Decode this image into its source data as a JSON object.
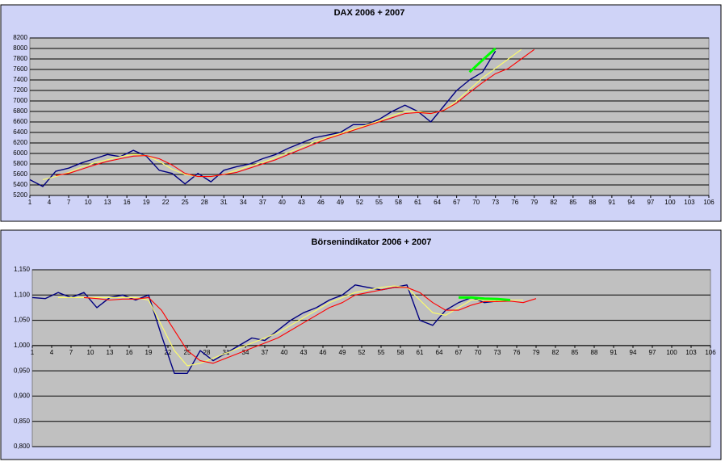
{
  "chart_data": [
    {
      "type": "line",
      "title": "DAX 2006 + 2007",
      "x": [
        1,
        3,
        5,
        7,
        9,
        11,
        13,
        15,
        17,
        19,
        21,
        23,
        25,
        27,
        29,
        31,
        33,
        35,
        37,
        39,
        41,
        43,
        45,
        47,
        49,
        51,
        53,
        55,
        57,
        59,
        61,
        63,
        65,
        67,
        69,
        71,
        73,
        75,
        77,
        79
      ],
      "xlim": [
        1,
        106
      ],
      "xticks": [
        1,
        4,
        7,
        10,
        13,
        16,
        19,
        22,
        25,
        28,
        31,
        34,
        37,
        40,
        43,
        46,
        49,
        52,
        55,
        58,
        61,
        64,
        67,
        70,
        73,
        76,
        79,
        82,
        85,
        88,
        91,
        94,
        97,
        100,
        103,
        106
      ],
      "ylim": [
        5200,
        8200
      ],
      "yticks": [
        5200,
        5400,
        5600,
        5800,
        6000,
        6200,
        6400,
        6600,
        6800,
        7000,
        7200,
        7400,
        7600,
        7800,
        8000,
        8200
      ],
      "grid": true,
      "series": [
        {
          "color": "#000080",
          "values": [
            5500,
            5370,
            5660,
            5720,
            5820,
            5900,
            5980,
            5940,
            6060,
            5950,
            5680,
            5620,
            5420,
            5620,
            5460,
            5680,
            5750,
            5800,
            5900,
            5980,
            6100,
            6200,
            6300,
            6350,
            6400,
            6550,
            6550,
            6650,
            6800,
            6920,
            6800,
            6600,
            6900,
            7200,
            7400,
            7550,
            7950,
            null,
            null,
            null
          ]
        },
        {
          "color": "#ffff66",
          "values": [
            null,
            5500,
            5560,
            5640,
            5740,
            5820,
            5880,
            5940,
            5980,
            5960,
            5850,
            5700,
            5600,
            5560,
            5560,
            5600,
            5680,
            5760,
            5830,
            5920,
            6020,
            6120,
            6220,
            6300,
            6380,
            6460,
            6540,
            6620,
            6720,
            6800,
            6800,
            6760,
            6820,
            7000,
            7220,
            7440,
            7620,
            7800,
            7980,
            null
          ]
        },
        {
          "color": "#ff0000",
          "values": [
            null,
            null,
            5580,
            5620,
            5700,
            5780,
            5850,
            5900,
            5950,
            5960,
            5900,
            5780,
            5620,
            5560,
            5560,
            5600,
            5640,
            5720,
            5800,
            5880,
            5980,
            6080,
            6180,
            6280,
            6360,
            6440,
            6520,
            6600,
            6680,
            6760,
            6780,
            6760,
            6820,
            6960,
            7160,
            7350,
            7520,
            7620,
            7800,
            7980
          ]
        },
        {
          "color": "#00ff00",
          "values": [
            null,
            null,
            null,
            null,
            null,
            null,
            null,
            null,
            null,
            null,
            null,
            null,
            null,
            null,
            null,
            null,
            null,
            null,
            null,
            null,
            null,
            null,
            null,
            null,
            null,
            null,
            null,
            null,
            null,
            null,
            null,
            null,
            null,
            null,
            7550,
            7780,
            8000,
            null,
            null,
            null
          ]
        }
      ]
    },
    {
      "type": "line",
      "title": "Börsenindikator 2006 + 2007",
      "x": [
        1,
        3,
        5,
        7,
        9,
        11,
        13,
        15,
        17,
        19,
        21,
        23,
        25,
        27,
        29,
        31,
        33,
        35,
        37,
        39,
        41,
        43,
        45,
        47,
        49,
        51,
        53,
        55,
        57,
        59,
        61,
        63,
        65,
        67,
        69,
        71,
        73,
        75,
        77,
        79
      ],
      "xlim": [
        1,
        106
      ],
      "xticks": [
        1,
        4,
        7,
        10,
        13,
        16,
        19,
        22,
        25,
        28,
        31,
        34,
        37,
        40,
        43,
        46,
        49,
        52,
        55,
        58,
        61,
        64,
        67,
        70,
        73,
        76,
        79,
        82,
        85,
        88,
        91,
        94,
        97,
        100,
        103,
        106
      ],
      "ylim": [
        0.8,
        1.15
      ],
      "yticks": [
        {
          "value": 0.8,
          "label": "0,800"
        },
        {
          "value": 0.85,
          "label": "0,850"
        },
        {
          "value": 0.9,
          "label": "0,900"
        },
        {
          "value": 0.95,
          "label": "0,950"
        },
        {
          "value": 1.0,
          "label": "1,000"
        },
        {
          "value": 1.05,
          "label": "1,050"
        },
        {
          "value": 1.1,
          "label": "1,100"
        },
        {
          "value": 1.15,
          "label": "1,150"
        }
      ],
      "grid": true,
      "series": [
        {
          "color": "#000080",
          "values": [
            1.095,
            1.093,
            1.105,
            1.095,
            1.105,
            1.075,
            1.095,
            1.1,
            1.09,
            1.1,
            1.02,
            0.945,
            0.945,
            0.99,
            0.97,
            0.985,
            1.0,
            1.015,
            1.01,
            1.03,
            1.05,
            1.065,
            1.075,
            1.09,
            1.1,
            1.12,
            1.115,
            1.11,
            1.115,
            1.12,
            1.05,
            1.04,
            1.07,
            1.085,
            1.095,
            1.085,
            1.088,
            null,
            null,
            null
          ]
        },
        {
          "color": "#ffff66",
          "values": [
            null,
            null,
            1.095,
            1.095,
            1.095,
            1.095,
            1.095,
            1.095,
            1.095,
            1.09,
            1.04,
            0.99,
            0.96,
            0.965,
            0.975,
            0.985,
            0.995,
            1.005,
            1.015,
            1.025,
            1.04,
            1.055,
            1.07,
            1.085,
            1.095,
            1.105,
            1.11,
            1.115,
            1.118,
            1.115,
            1.09,
            1.065,
            1.06,
            1.075,
            1.09,
            1.09,
            1.088,
            1.09,
            1.09,
            null
          ]
        },
        {
          "color": "#ff0000",
          "values": [
            null,
            null,
            null,
            null,
            1.095,
            1.093,
            1.09,
            1.092,
            1.092,
            1.095,
            1.07,
            1.03,
            0.99,
            0.97,
            0.965,
            0.975,
            0.985,
            0.995,
            1.005,
            1.015,
            1.03,
            1.045,
            1.06,
            1.075,
            1.085,
            1.1,
            1.105,
            1.11,
            1.115,
            1.115,
            1.105,
            1.085,
            1.07,
            1.07,
            1.08,
            1.087,
            1.087,
            1.088,
            1.085,
            1.093
          ]
        },
        {
          "color": "#00ff00",
          "values": [
            null,
            null,
            null,
            null,
            null,
            null,
            null,
            null,
            null,
            null,
            null,
            null,
            null,
            null,
            null,
            null,
            null,
            null,
            null,
            null,
            null,
            null,
            null,
            null,
            null,
            null,
            null,
            null,
            null,
            null,
            null,
            null,
            null,
            1.095,
            1.095,
            1.093,
            1.092,
            1.09,
            null,
            null
          ]
        }
      ]
    }
  ]
}
